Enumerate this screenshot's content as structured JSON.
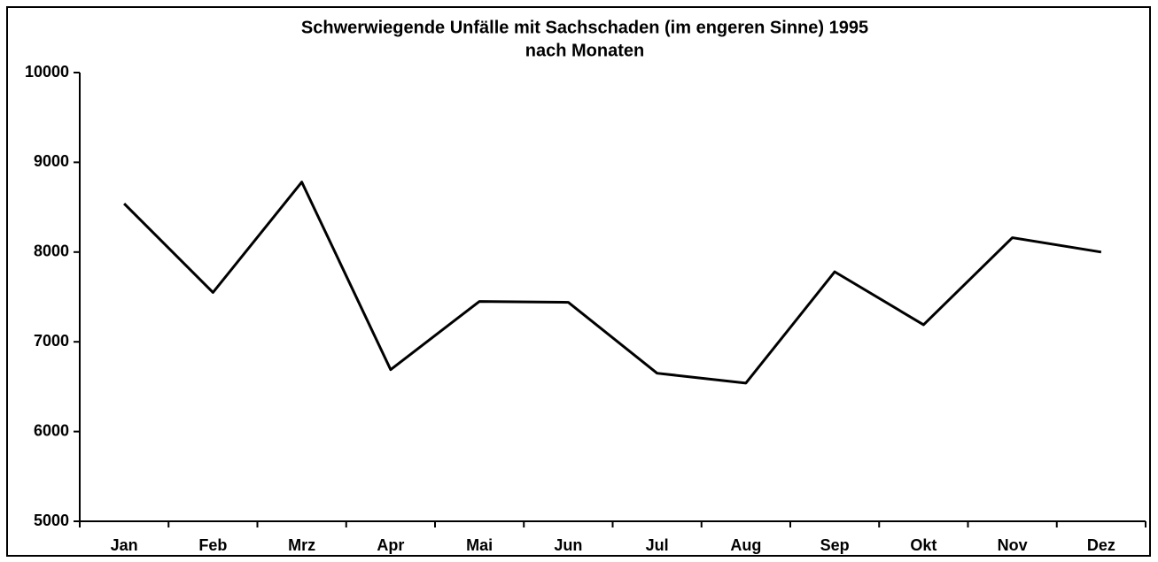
{
  "chart_data": {
    "type": "line",
    "title": "Schwerwiegende Unfälle mit Sachschaden (im engeren Sinne) 1995",
    "subtitle": "nach Monaten",
    "categories": [
      "Jan",
      "Feb",
      "Mrz",
      "Apr",
      "Mai",
      "Jun",
      "Jul",
      "Aug",
      "Sep",
      "Okt",
      "Nov",
      "Dez"
    ],
    "values": [
      8540,
      7550,
      8780,
      6690,
      7450,
      7440,
      6650,
      6540,
      7780,
      7190,
      8160,
      8000
    ],
    "color": "#000000",
    "ylim": [
      5000,
      10000
    ],
    "yticks": [
      5000,
      6000,
      7000,
      8000,
      9000,
      10000
    ],
    "grid": false
  }
}
